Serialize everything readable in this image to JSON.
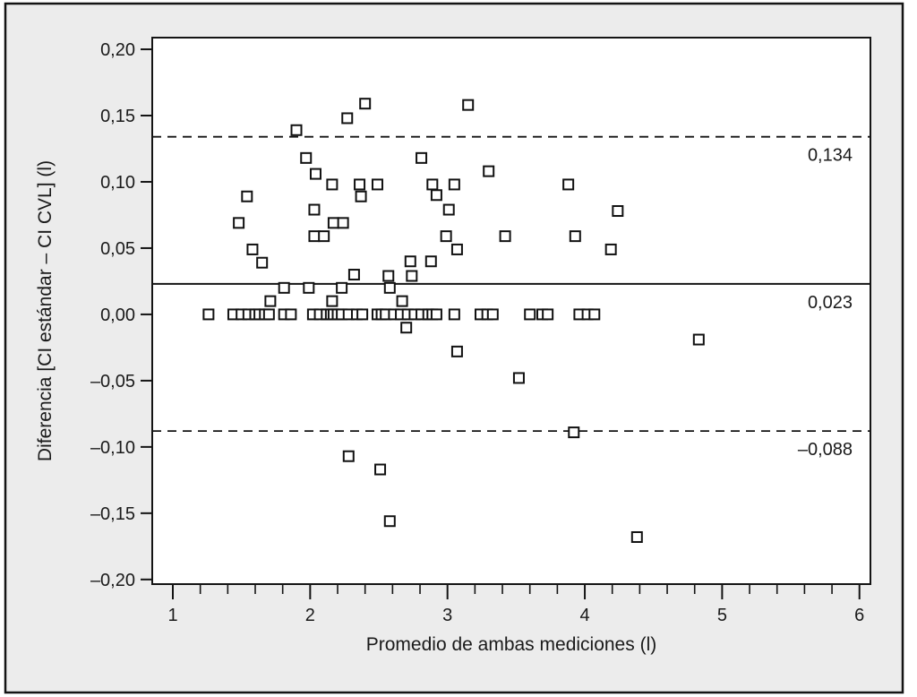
{
  "figure": {
    "background": "#ececec",
    "plot_background": "#ffffff",
    "frame_color": "#141414",
    "text_color": "#1a1a1a",
    "marker_color": "#111111"
  },
  "chart_data": {
    "type": "scatter",
    "title": "",
    "xlabel": "Promedio de ambas mediciones (l)",
    "ylabel": "Diferencia [CI estándar – CI CVL] (l)",
    "xlim": [
      0.85,
      6.08
    ],
    "ylim": [
      -0.2035,
      0.2088
    ],
    "grid": false,
    "legend": "none",
    "marker": "open-square",
    "x_ticks": {
      "values": [
        1,
        2,
        3,
        4,
        5,
        6
      ],
      "labels": [
        "1",
        "2",
        "3",
        "4",
        "5",
        "6"
      ],
      "minor_step": 0.2
    },
    "y_ticks": {
      "values": [
        0.2,
        0.15,
        0.1,
        0.05,
        0.0,
        -0.05,
        -0.1,
        -0.15,
        -0.2
      ],
      "labels": [
        "0,20",
        "0,15",
        "0,10",
        "0,05",
        "0,00",
        "–0,05",
        "–0,10",
        "–0,15",
        "–0,20"
      ]
    },
    "reference_lines": [
      {
        "name": "upper-limit",
        "value": 0.134,
        "style": "dashed",
        "label": "0,134"
      },
      {
        "name": "mean",
        "value": 0.023,
        "style": "solid",
        "label": "0,023"
      },
      {
        "name": "lower-limit",
        "value": -0.088,
        "style": "dashed",
        "label": "–0,088"
      }
    ],
    "points": [
      [
        2.4,
        0.159
      ],
      [
        3.15,
        0.158
      ],
      [
        2.27,
        0.148
      ],
      [
        1.9,
        0.139
      ],
      [
        1.97,
        0.118
      ],
      [
        2.81,
        0.118
      ],
      [
        3.3,
        0.108
      ],
      [
        2.04,
        0.106
      ],
      [
        2.16,
        0.098
      ],
      [
        2.36,
        0.098
      ],
      [
        2.49,
        0.098
      ],
      [
        2.89,
        0.098
      ],
      [
        3.05,
        0.098
      ],
      [
        3.88,
        0.098
      ],
      [
        1.54,
        0.089
      ],
      [
        2.37,
        0.089
      ],
      [
        2.92,
        0.09
      ],
      [
        2.03,
        0.079
      ],
      [
        3.01,
        0.079
      ],
      [
        4.24,
        0.078
      ],
      [
        1.48,
        0.069
      ],
      [
        2.17,
        0.069
      ],
      [
        2.24,
        0.069
      ],
      [
        2.03,
        0.059
      ],
      [
        2.1,
        0.059
      ],
      [
        2.99,
        0.059
      ],
      [
        3.42,
        0.059
      ],
      [
        3.93,
        0.059
      ],
      [
        1.58,
        0.049
      ],
      [
        3.07,
        0.049
      ],
      [
        4.19,
        0.049
      ],
      [
        1.65,
        0.039
      ],
      [
        2.73,
        0.04
      ],
      [
        2.88,
        0.04
      ],
      [
        2.32,
        0.03
      ],
      [
        2.57,
        0.029
      ],
      [
        2.74,
        0.029
      ],
      [
        1.81,
        0.02
      ],
      [
        1.99,
        0.02
      ],
      [
        2.23,
        0.02
      ],
      [
        2.58,
        0.02
      ],
      [
        1.71,
        0.01
      ],
      [
        2.16,
        0.01
      ],
      [
        2.67,
        0.01
      ],
      [
        1.26,
        0.0
      ],
      [
        1.44,
        0.0
      ],
      [
        1.5,
        0.0
      ],
      [
        1.55,
        0.0
      ],
      [
        1.6,
        0.0
      ],
      [
        1.63,
        0.0
      ],
      [
        1.67,
        0.0
      ],
      [
        1.7,
        0.0
      ],
      [
        1.81,
        0.0
      ],
      [
        1.86,
        0.0
      ],
      [
        2.02,
        0.0
      ],
      [
        2.07,
        0.0
      ],
      [
        2.12,
        0.0
      ],
      [
        2.15,
        0.0
      ],
      [
        2.17,
        0.0
      ],
      [
        2.2,
        0.0
      ],
      [
        2.23,
        0.0
      ],
      [
        2.28,
        0.0
      ],
      [
        2.34,
        0.0
      ],
      [
        2.38,
        0.0
      ],
      [
        2.49,
        0.0
      ],
      [
        2.52,
        0.0
      ],
      [
        2.55,
        0.0
      ],
      [
        2.61,
        0.0
      ],
      [
        2.66,
        0.0
      ],
      [
        2.71,
        0.0
      ],
      [
        2.76,
        0.0
      ],
      [
        2.81,
        0.0
      ],
      [
        2.86,
        0.0
      ],
      [
        2.89,
        0.0
      ],
      [
        2.92,
        0.0
      ],
      [
        3.05,
        0.0
      ],
      [
        3.24,
        0.0
      ],
      [
        3.29,
        0.0
      ],
      [
        3.33,
        0.0
      ],
      [
        3.6,
        0.0
      ],
      [
        3.69,
        0.0
      ],
      [
        3.73,
        0.0
      ],
      [
        3.96,
        0.0
      ],
      [
        4.02,
        0.0
      ],
      [
        4.07,
        0.0
      ],
      [
        2.7,
        -0.01
      ],
      [
        4.83,
        -0.019
      ],
      [
        3.07,
        -0.028
      ],
      [
        3.52,
        -0.048
      ],
      [
        3.92,
        -0.089
      ],
      [
        2.28,
        -0.107
      ],
      [
        2.51,
        -0.117
      ],
      [
        2.58,
        -0.156
      ],
      [
        4.38,
        -0.168
      ]
    ]
  }
}
